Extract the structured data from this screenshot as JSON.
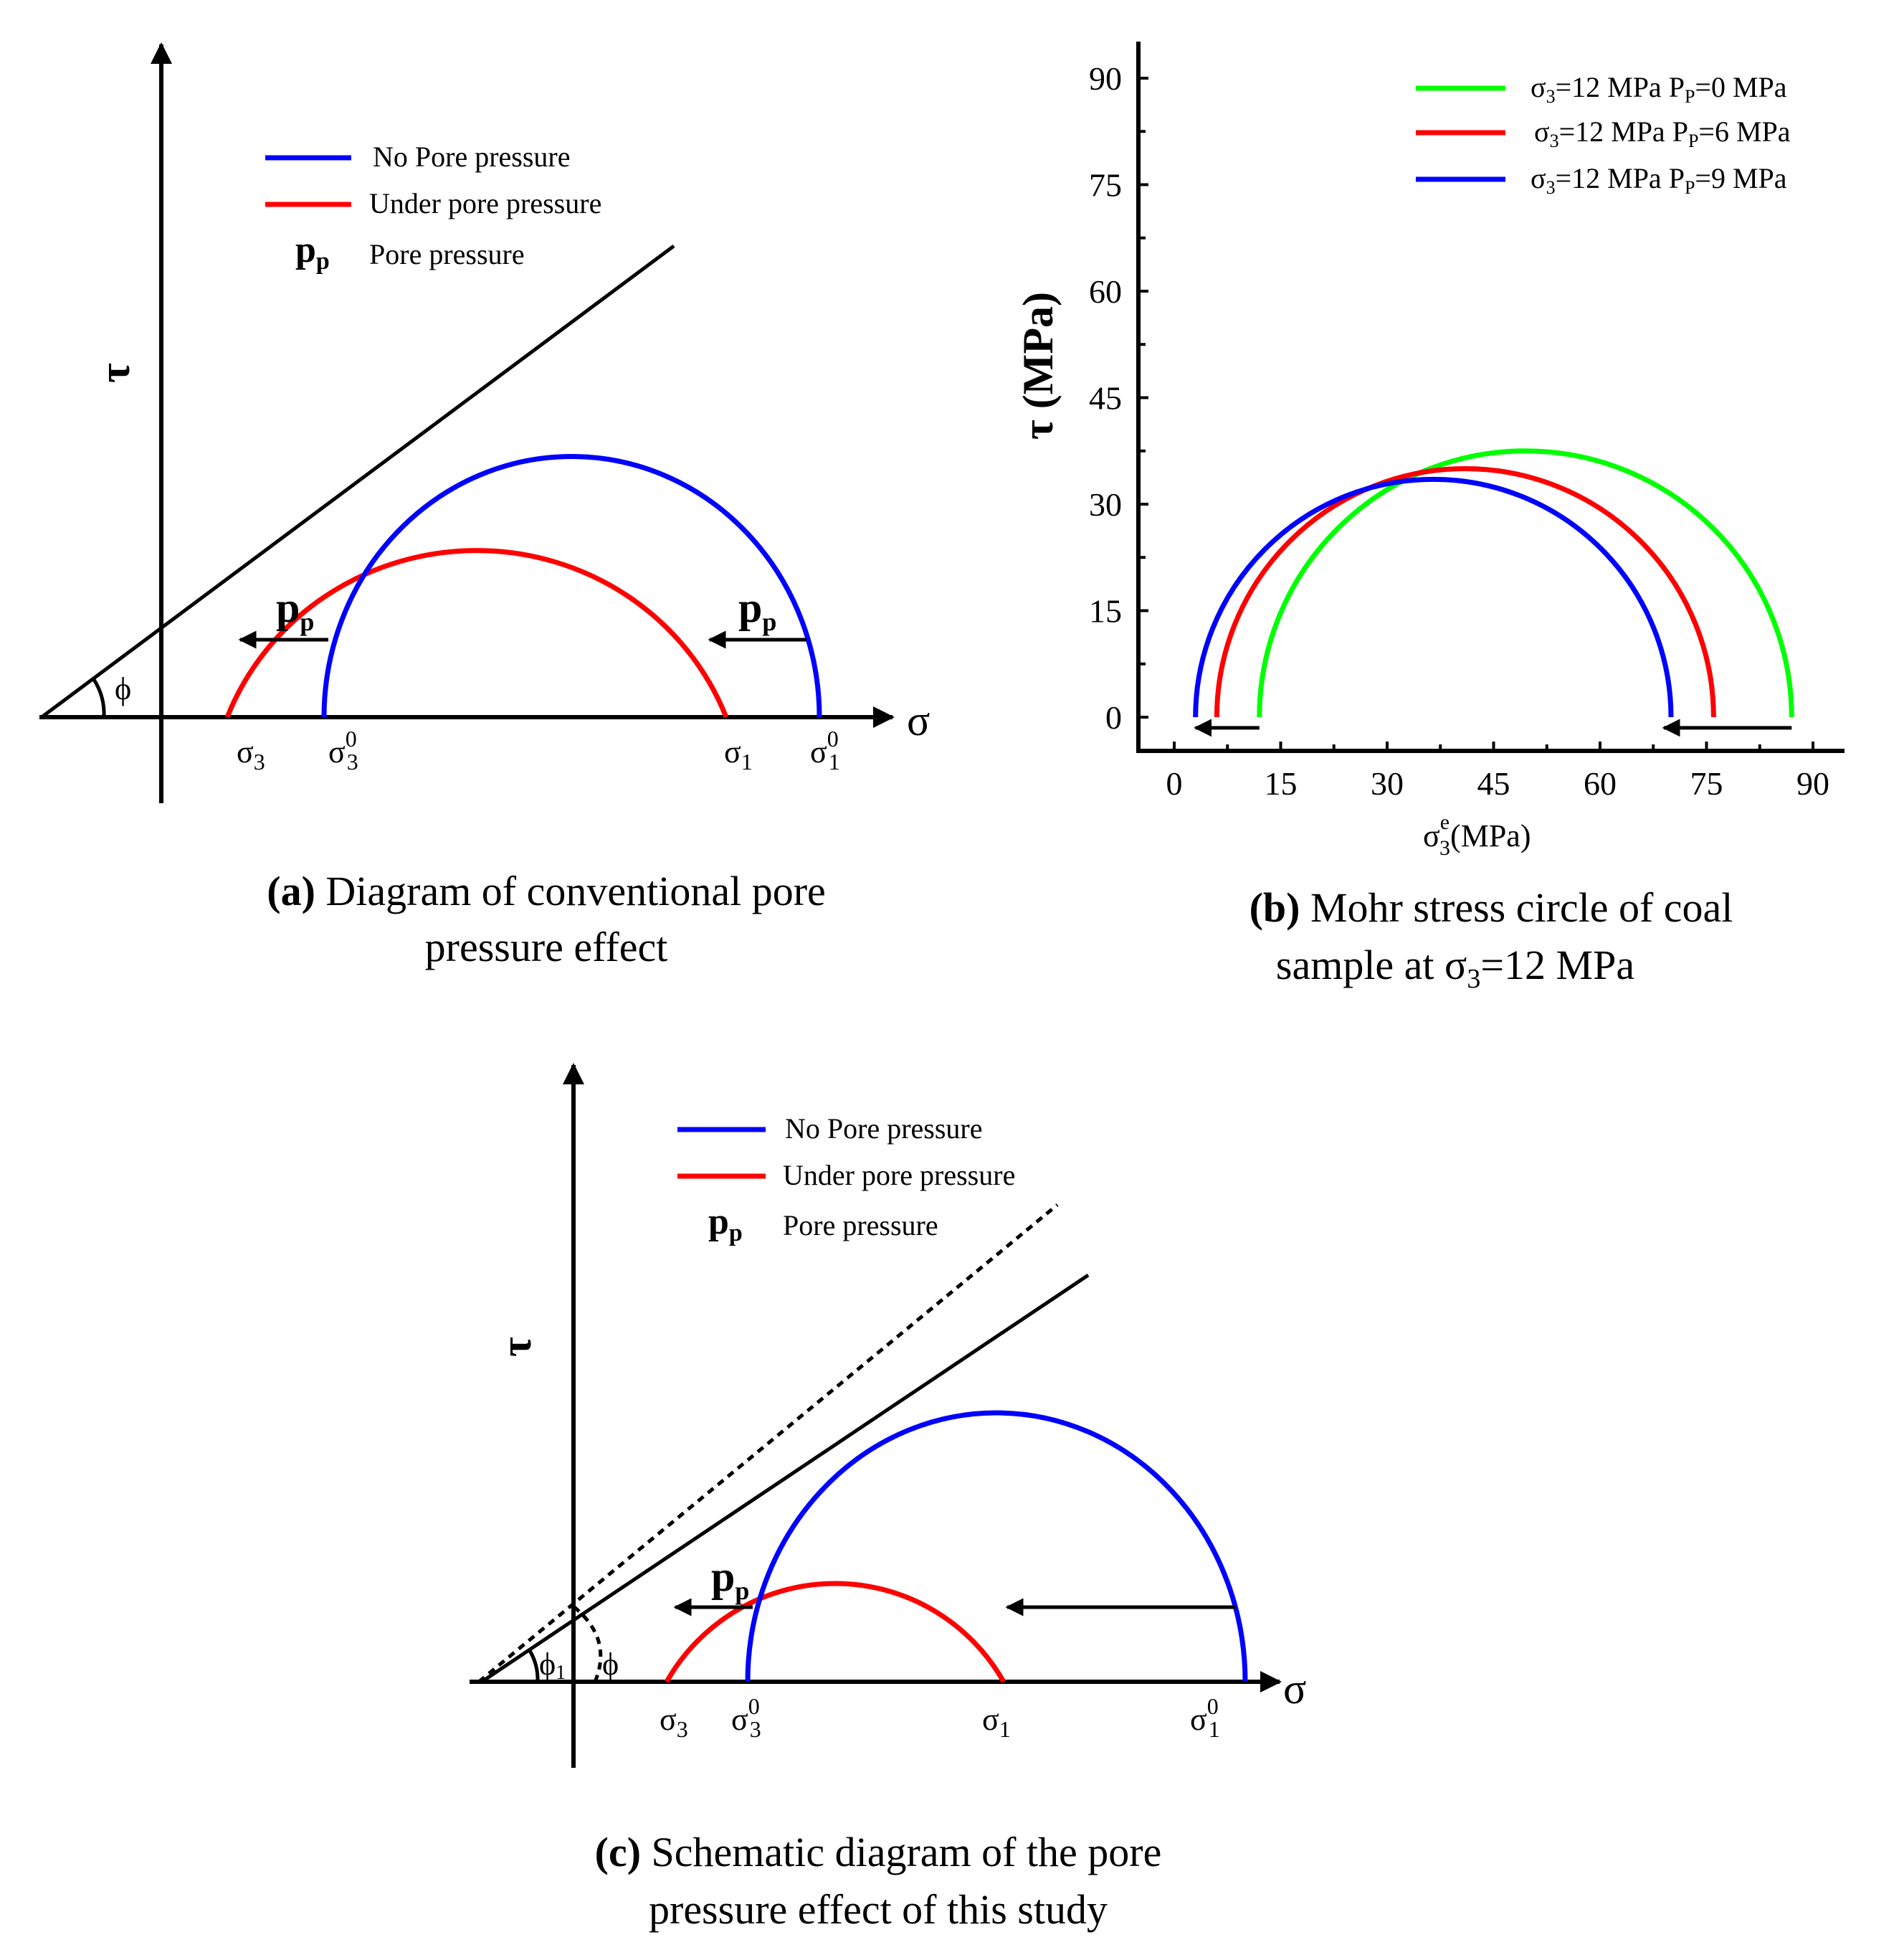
{
  "panel_a": {
    "y_symbol": "τ",
    "x_symbol": "σ",
    "legend": {
      "no_pore": "No Pore pressure",
      "under_pore": "Under pore pressure",
      "pp_symbol": "p",
      "pp_sub": "p",
      "pp_text": "Pore pressure"
    },
    "angle": "ϕ",
    "arrow_label_main": "p",
    "arrow_label_sub": "p",
    "s3_main": "σ",
    "s3_sub": "3",
    "s30_main": "σ",
    "s30_sup": "0",
    "s30_sub": "3",
    "s1_main": "σ",
    "s1_sub": "1",
    "s10_main": "σ",
    "s10_sup": "0",
    "s10_sub": "1",
    "caption_bold": "(a)",
    "caption_line1": " Diagram of conventional pore",
    "caption_line2": "pressure effect"
  },
  "panel_b": {
    "legend": [
      {
        "main": "σ",
        "sub": "3",
        "rest": "=12 MPa  P",
        "sub2": "P",
        "rest2": "=0 MPa",
        "color": "#00ff00"
      },
      {
        "main": "σ",
        "sub": "3",
        "rest": "=12 MPa  P",
        "sub2": "P",
        "rest2": "=6 MPa",
        "color": "#ff0000"
      },
      {
        "main": "σ",
        "sub": "3",
        "rest": "=12 MPa  P",
        "sub2": "P",
        "rest2": "=9 MPa",
        "color": "#0000ff"
      }
    ],
    "ylabel": "τ (MPa)",
    "xlabel_main": "σ",
    "xlabel_sup": "e",
    "xlabel_sub": "3",
    "xlabel_unit": "(MPa)",
    "caption_bold": "(b)",
    "caption_line1": " Mohr stress circle of  coal",
    "caption_line2_a": "sample at σ",
    "caption_line2_sub": "3",
    "caption_line2_b": "=12 MPa"
  },
  "panel_c": {
    "y_symbol": "τ",
    "x_symbol": "σ",
    "legend": {
      "no_pore": "No Pore pressure",
      "under_pore": "Under pore pressure",
      "pp_symbol": "p",
      "pp_sub": "p",
      "pp_text": "Pore pressure"
    },
    "angle1_main": "ϕ",
    "angle1_sub": "1",
    "angle2": "ϕ",
    "arrow_label_main": "p",
    "arrow_label_sub": "p",
    "s3_main": "σ",
    "s3_sub": "3",
    "s30_main": "σ",
    "s30_sup": "0",
    "s30_sub": "3",
    "s1_main": "σ",
    "s1_sub": "1",
    "s10_main": "σ",
    "s10_sup": "0",
    "s10_sub": "1",
    "caption_bold": "(c)",
    "caption_line1": " Schematic diagram of the pore",
    "caption_line2": "pressure effect of this study"
  },
  "chart_data": {
    "type": "line",
    "title": "",
    "xlabel": "σ3e (MPa)",
    "ylabel": "τ (MPa)",
    "xlim": [
      -4,
      95
    ],
    "ylim": [
      -5,
      95
    ],
    "x_ticks": [
      0,
      15,
      30,
      45,
      60,
      75,
      90
    ],
    "y_ticks": [
      0,
      15,
      30,
      45,
      60,
      75,
      90
    ],
    "series": [
      {
        "name": "σ3=12 MPa PP=0 MPa",
        "sigma3": 12,
        "sigma1": 87,
        "color": "#00ff00"
      },
      {
        "name": "σ3=12 MPa PP=6 MPa",
        "sigma3": 6,
        "sigma1": 76,
        "color": "#ff0000"
      },
      {
        "name": "σ3=12 MPa PP=9 MPa",
        "sigma3": 3,
        "sigma1": 70,
        "color": "#0000ff"
      }
    ],
    "shift_arrows": [
      {
        "from": 12,
        "to": 3,
        "y": -1.5
      },
      {
        "from": 87,
        "to": 69,
        "y": -1.5
      }
    ]
  }
}
